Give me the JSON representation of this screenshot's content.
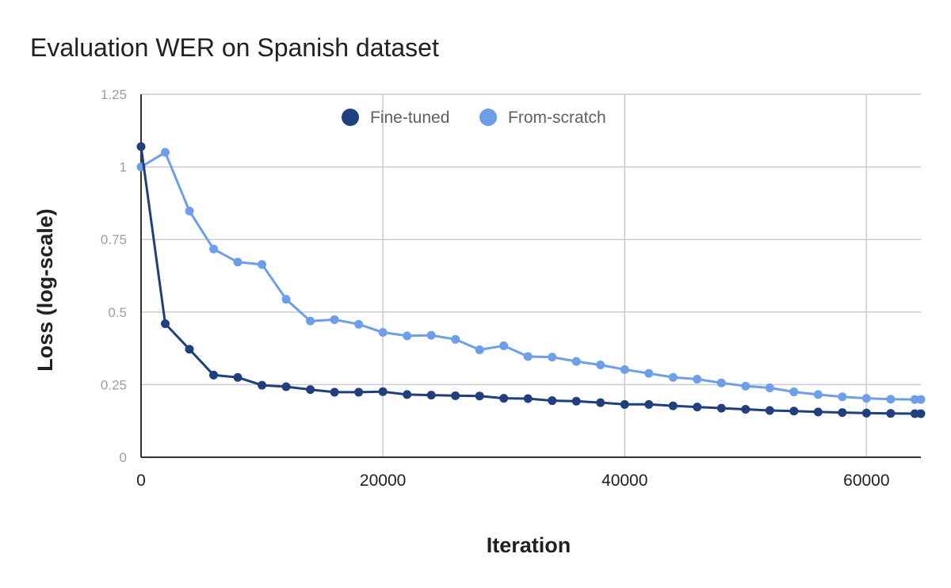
{
  "chart_data": {
    "type": "line",
    "title": "Evaluation WER on Spanish dataset",
    "xlabel": "Iteration",
    "ylabel": "Loss (log-scale)",
    "xlim": [
      0,
      64500
    ],
    "ylim": [
      0,
      1.25
    ],
    "x_ticks": [
      0,
      20000,
      40000,
      60000
    ],
    "x_tick_labels": [
      "0",
      "20000",
      "40000",
      "60000"
    ],
    "y_ticks": [
      0,
      0.25,
      0.5,
      0.75,
      1,
      1.25
    ],
    "y_tick_labels": [
      "0",
      "0.25",
      "0.5",
      "0.75",
      "1",
      "1.25"
    ],
    "grid": true,
    "legend_position": "top",
    "x": [
      0,
      2000,
      4000,
      6000,
      8000,
      10000,
      12000,
      14000,
      16000,
      18000,
      20000,
      22000,
      24000,
      26000,
      28000,
      30000,
      32000,
      34000,
      36000,
      38000,
      40000,
      42000,
      44000,
      46000,
      48000,
      50000,
      52000,
      54000,
      56000,
      58000,
      60000,
      62000,
      64000,
      64500
    ],
    "series": [
      {
        "name": "Fine-tuned",
        "color": "#1f3f7f",
        "values": [
          1.07,
          0.46,
          0.372,
          0.283,
          0.275,
          0.248,
          0.243,
          0.233,
          0.224,
          0.224,
          0.226,
          0.216,
          0.214,
          0.212,
          0.211,
          0.203,
          0.202,
          0.195,
          0.193,
          0.188,
          0.182,
          0.182,
          0.177,
          0.173,
          0.169,
          0.165,
          0.161,
          0.159,
          0.156,
          0.154,
          0.152,
          0.151,
          0.15,
          0.15
        ]
      },
      {
        "name": "From-scratch",
        "color": "#6d9eeb",
        "values": [
          1.0,
          1.05,
          0.848,
          0.717,
          0.672,
          0.664,
          0.544,
          0.469,
          0.474,
          0.458,
          0.43,
          0.418,
          0.42,
          0.406,
          0.37,
          0.384,
          0.347,
          0.345,
          0.33,
          0.318,
          0.302,
          0.289,
          0.275,
          0.269,
          0.256,
          0.245,
          0.239,
          0.225,
          0.216,
          0.208,
          0.203,
          0.2,
          0.199,
          0.199
        ]
      }
    ]
  }
}
